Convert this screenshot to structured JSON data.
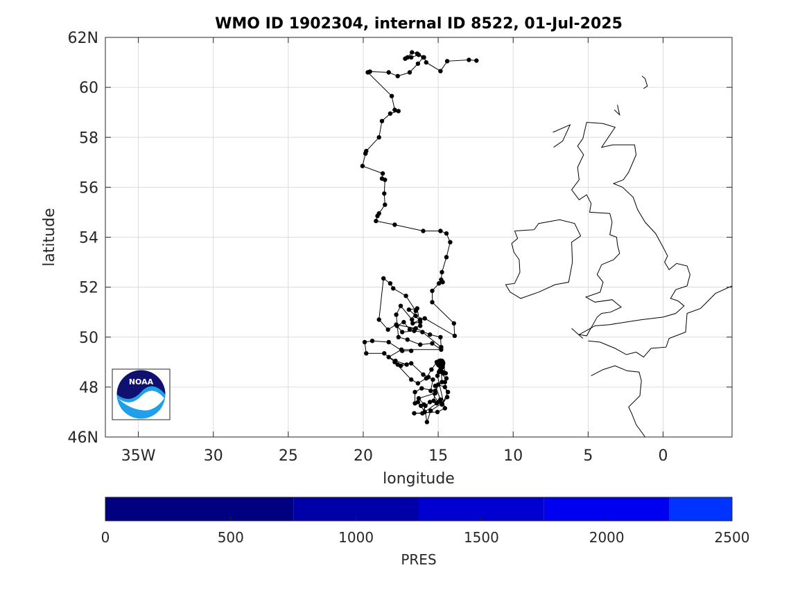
{
  "chart_data": {
    "type": "scatter",
    "title": "WMO ID 1902304, internal ID 8522, 01-Jul-2025",
    "xlabel": "longitude",
    "ylabel": "latitude",
    "xlim": [
      -37.2,
      4.6
    ],
    "ylim": [
      46,
      62
    ],
    "grid": true,
    "x_ticks": [
      {
        "value": -35,
        "label": "35W"
      },
      {
        "value": -30,
        "label": "30"
      },
      {
        "value": -25,
        "label": "25"
      },
      {
        "value": -20,
        "label": "20"
      },
      {
        "value": -15,
        "label": "15"
      },
      {
        "value": -10,
        "label": "10"
      },
      {
        "value": -5,
        "label": "5"
      },
      {
        "value": 0,
        "label": "0"
      }
    ],
    "y_ticks": [
      {
        "value": 46,
        "label": "46N"
      },
      {
        "value": 48,
        "label": "48"
      },
      {
        "value": 50,
        "label": "50"
      },
      {
        "value": 52,
        "label": "52"
      },
      {
        "value": 54,
        "label": "54"
      },
      {
        "value": 56,
        "label": "56"
      },
      {
        "value": 58,
        "label": "58"
      },
      {
        "value": 60,
        "label": "60"
      },
      {
        "value": 62,
        "label": "62N"
      }
    ],
    "series": [
      {
        "points": [
          [
            -12.45,
            61.07
          ],
          [
            -12.95,
            61.1
          ],
          [
            -14.4,
            61.05
          ],
          [
            -14.85,
            60.65
          ],
          [
            -15.8,
            61.0
          ],
          [
            -15.95,
            61.2
          ],
          [
            -16.4,
            61.35
          ],
          [
            -16.75,
            61.4
          ],
          [
            -17.05,
            61.2
          ],
          [
            -17.2,
            61.15
          ],
          [
            -16.8,
            61.2
          ],
          [
            -16.3,
            61.3
          ],
          [
            -16.0,
            61.2
          ],
          [
            -16.35,
            60.95
          ],
          [
            -16.9,
            60.6
          ],
          [
            -17.7,
            60.45
          ],
          [
            -18.3,
            60.6
          ],
          [
            -19.55,
            60.63
          ],
          [
            -19.7,
            60.6
          ],
          [
            -18.1,
            59.65
          ],
          [
            -17.9,
            59.1
          ],
          [
            -17.65,
            59.05
          ],
          [
            -18.2,
            58.95
          ],
          [
            -18.75,
            58.65
          ],
          [
            -18.95,
            58.0
          ],
          [
            -19.8,
            57.45
          ],
          [
            -19.85,
            57.35
          ],
          [
            -20.05,
            56.85
          ],
          [
            -18.7,
            56.55
          ],
          [
            -18.75,
            56.35
          ],
          [
            -18.55,
            56.3
          ],
          [
            -18.6,
            55.75
          ],
          [
            -18.55,
            55.3
          ],
          [
            -18.95,
            54.95
          ],
          [
            -19.05,
            54.85
          ],
          [
            -19.15,
            54.65
          ],
          [
            -17.9,
            54.5
          ],
          [
            -16.0,
            54.25
          ],
          [
            -14.85,
            54.25
          ],
          [
            -14.45,
            54.15
          ],
          [
            -14.2,
            53.8
          ],
          [
            -14.45,
            53.2
          ],
          [
            -14.75,
            52.6
          ],
          [
            -14.8,
            52.3
          ],
          [
            -14.7,
            52.2
          ],
          [
            -14.95,
            52.15
          ],
          [
            -15.4,
            51.85
          ],
          [
            -15.4,
            51.4
          ],
          [
            -13.95,
            50.55
          ],
          [
            -13.9,
            50.05
          ],
          [
            -15.9,
            50.75
          ],
          [
            -16.2,
            50.7
          ],
          [
            -16.7,
            50.55
          ],
          [
            -16.2,
            50.6
          ],
          [
            -16.5,
            50.85
          ],
          [
            -16.95,
            51.1
          ],
          [
            -16.4,
            51.15
          ],
          [
            -16.2,
            50.45
          ],
          [
            -16.9,
            50.3
          ],
          [
            -17.3,
            50.6
          ],
          [
            -17.75,
            50.45
          ],
          [
            -17.4,
            50.2
          ],
          [
            -16.6,
            50.25
          ],
          [
            -16.05,
            50.2
          ],
          [
            -14.8,
            49.6
          ],
          [
            -14.85,
            50.0
          ],
          [
            -15.55,
            50.1
          ],
          [
            -16.5,
            50.35
          ],
          [
            -17.8,
            50.5
          ],
          [
            -18.35,
            50.3
          ],
          [
            -18.95,
            50.7
          ],
          [
            -18.65,
            52.35
          ],
          [
            -18.2,
            52.15
          ],
          [
            -18.0,
            51.95
          ],
          [
            -17.15,
            51.65
          ],
          [
            -16.5,
            51.05
          ],
          [
            -16.75,
            50.7
          ],
          [
            -17.5,
            51.25
          ],
          [
            -17.8,
            50.9
          ],
          [
            -17.65,
            50.0
          ],
          [
            -17.05,
            49.9
          ],
          [
            -16.2,
            49.7
          ],
          [
            -15.4,
            49.75
          ],
          [
            -14.8,
            49.5
          ],
          [
            -17.45,
            49.5
          ],
          [
            -18.3,
            49.2
          ],
          [
            -17.85,
            49.05
          ],
          [
            -17.1,
            48.9
          ],
          [
            -17.5,
            48.85
          ],
          [
            -17.7,
            48.9
          ],
          [
            -16.8,
            48.95
          ],
          [
            -16.0,
            48.5
          ],
          [
            -15.65,
            48.4
          ],
          [
            -15.35,
            48.3
          ],
          [
            -15.5,
            47.85
          ],
          [
            -15.0,
            47.4
          ],
          [
            -14.75,
            47.35
          ],
          [
            -15.5,
            47.05
          ],
          [
            -15.75,
            46.6
          ],
          [
            -15.95,
            47.3
          ],
          [
            -16.3,
            47.55
          ],
          [
            -15.2,
            47.75
          ],
          [
            -15.0,
            48.1
          ],
          [
            -14.55,
            48.0
          ],
          [
            -14.35,
            47.8
          ],
          [
            -14.75,
            47.3
          ],
          [
            -14.4,
            47.6
          ],
          [
            -14.55,
            48.2
          ],
          [
            -14.45,
            48.35
          ],
          [
            -14.95,
            48.6
          ],
          [
            -14.85,
            48.7
          ],
          [
            -14.7,
            48.8
          ],
          [
            -14.9,
            49.0
          ],
          [
            -14.75,
            49.05
          ],
          [
            -14.5,
            48.55
          ],
          [
            -14.7,
            48.6
          ],
          [
            -14.9,
            48.65
          ],
          [
            -14.6,
            48.55
          ],
          [
            -14.8,
            48.65
          ],
          [
            -14.75,
            48.2
          ],
          [
            -15.2,
            48.05
          ],
          [
            -14.85,
            47.5
          ],
          [
            -15.1,
            47.35
          ],
          [
            -15.9,
            47.0
          ],
          [
            -16.15,
            47.25
          ],
          [
            -16.35,
            47.4
          ],
          [
            -16.55,
            47.35
          ],
          [
            -16.55,
            47.8
          ],
          [
            -16.1,
            47.95
          ],
          [
            -15.2,
            47.85
          ],
          [
            -15.3,
            47.45
          ],
          [
            -15.55,
            47.4
          ],
          [
            -15.85,
            47.25
          ],
          [
            -16.05,
            46.95
          ],
          [
            -16.6,
            46.95
          ],
          [
            -15.05,
            47.0
          ],
          [
            -14.55,
            47.15
          ],
          [
            -15.05,
            48.45
          ],
          [
            -14.9,
            48.85
          ],
          [
            -15.1,
            49.0
          ],
          [
            -15.45,
            48.7
          ],
          [
            -15.8,
            48.35
          ],
          [
            -16.35,
            48.15
          ],
          [
            -16.8,
            48.3
          ],
          [
            -17.9,
            49.0
          ],
          [
            -18.6,
            49.35
          ],
          [
            -19.8,
            49.35
          ],
          [
            -19.9,
            49.8
          ],
          [
            -19.4,
            49.85
          ],
          [
            -18.3,
            49.8
          ],
          [
            -17.4,
            49.45
          ],
          [
            -16.8,
            49.45
          ]
        ]
      }
    ],
    "colorbar": {
      "label": "PRES",
      "range": [
        0,
        2500
      ],
      "ticks": [
        "0",
        "500",
        "1000",
        "1500",
        "2000",
        "2500"
      ],
      "bands": [
        {
          "from": 0,
          "to": 750,
          "color": "#000080"
        },
        {
          "from": 750,
          "to": 1250,
          "color": "#0000a8"
        },
        {
          "from": 1250,
          "to": 1750,
          "color": "#0000d0"
        },
        {
          "from": 1750,
          "to": 2250,
          "color": "#0000f0"
        },
        {
          "from": 2250,
          "to": 2500,
          "color": "#0033ff"
        }
      ]
    },
    "coastline": [
      [
        [
          -9.9,
          54.25
        ],
        [
          -8.6,
          54.3
        ],
        [
          -8.3,
          54.55
        ],
        [
          -6.9,
          54.7
        ],
        [
          -5.9,
          54.55
        ],
        [
          -5.5,
          54.05
        ],
        [
          -6.1,
          53.8
        ],
        [
          -6.05,
          53.0
        ],
        [
          -6.3,
          52.2
        ],
        [
          -7.2,
          52.1
        ],
        [
          -8.3,
          51.8
        ],
        [
          -9.5,
          51.55
        ],
        [
          -10.2,
          51.8
        ],
        [
          -10.5,
          52.1
        ],
        [
          -9.9,
          52.15
        ],
        [
          -9.55,
          52.6
        ],
        [
          -9.6,
          53.1
        ],
        [
          -9.95,
          53.4
        ],
        [
          -10.1,
          53.75
        ],
        [
          -9.7,
          53.95
        ],
        [
          -9.9,
          54.25
        ]
      ],
      [
        [
          -5.1,
          58.6
        ],
        [
          -5.35,
          57.95
        ],
        [
          -5.7,
          57.65
        ],
        [
          -5.3,
          57.3
        ],
        [
          -5.7,
          56.8
        ],
        [
          -5.6,
          56.3
        ],
        [
          -6.1,
          55.9
        ],
        [
          -5.6,
          55.5
        ],
        [
          -5.1,
          55.7
        ],
        [
          -4.8,
          55.35
        ],
        [
          -4.9,
          55.0
        ],
        [
          -3.55,
          54.95
        ],
        [
          -3.4,
          54.6
        ],
        [
          -3.55,
          54.1
        ],
        [
          -3.1,
          54.0
        ],
        [
          -3.05,
          53.7
        ],
        [
          -2.9,
          53.35
        ],
        [
          -3.3,
          53.1
        ],
        [
          -4.1,
          52.9
        ],
        [
          -4.4,
          52.5
        ],
        [
          -4.0,
          52.2
        ],
        [
          -4.2,
          51.8
        ],
        [
          -5.15,
          51.6
        ],
        [
          -4.55,
          51.4
        ],
        [
          -3.4,
          51.5
        ],
        [
          -2.8,
          51.2
        ],
        [
          -3.5,
          51.0
        ],
        [
          -4.1,
          50.95
        ],
        [
          -4.4,
          50.8
        ],
        [
          -5.1,
          50.05
        ],
        [
          -5.6,
          50.1
        ],
        [
          -5.0,
          50.3
        ],
        [
          -4.55,
          50.45
        ],
        [
          -3.55,
          50.5
        ],
        [
          -2.5,
          50.6
        ],
        [
          -1.4,
          50.7
        ],
        [
          0.0,
          50.8
        ],
        [
          0.85,
          50.95
        ],
        [
          1.4,
          51.25
        ],
        [
          1.0,
          51.45
        ],
        [
          0.5,
          51.55
        ],
        [
          0.85,
          51.9
        ],
        [
          1.6,
          52.05
        ],
        [
          1.8,
          52.5
        ],
        [
          1.6,
          52.85
        ],
        [
          0.9,
          52.95
        ],
        [
          0.4,
          52.7
        ],
        [
          0.1,
          53.0
        ],
        [
          0.3,
          53.25
        ],
        [
          0.0,
          53.6
        ],
        [
          -0.5,
          54.15
        ],
        [
          -1.2,
          54.6
        ],
        [
          -1.7,
          55.1
        ],
        [
          -2.0,
          55.6
        ],
        [
          -2.7,
          56.0
        ],
        [
          -3.3,
          56.15
        ],
        [
          -2.65,
          56.3
        ],
        [
          -2.3,
          56.6
        ],
        [
          -1.8,
          57.3
        ],
        [
          -1.9,
          57.7
        ],
        [
          -3.35,
          57.7
        ],
        [
          -4.1,
          57.6
        ],
        [
          -3.2,
          58.4
        ],
        [
          -4.0,
          58.55
        ],
        [
          -5.1,
          58.6
        ]
      ],
      [
        [
          -5.0,
          49.85
        ],
        [
          -4.2,
          49.8
        ],
        [
          -3.2,
          49.55
        ],
        [
          -2.45,
          49.3
        ],
        [
          -1.8,
          49.4
        ],
        [
          -1.3,
          49.2
        ],
        [
          -0.8,
          49.55
        ],
        [
          0.2,
          49.6
        ],
        [
          0.4,
          49.95
        ],
        [
          1.5,
          50.2
        ],
        [
          1.6,
          50.95
        ],
        [
          2.5,
          51.15
        ],
        [
          3.5,
          51.75
        ],
        [
          4.6,
          52.05
        ]
      ],
      [
        [
          -4.8,
          48.45
        ],
        [
          -4.0,
          48.7
        ],
        [
          -3.2,
          48.85
        ],
        [
          -2.4,
          48.65
        ],
        [
          -1.6,
          48.6
        ],
        [
          -1.45,
          48.25
        ],
        [
          -1.55,
          47.65
        ],
        [
          -2.3,
          47.2
        ],
        [
          -2.1,
          46.95
        ],
        [
          -1.8,
          46.5
        ],
        [
          -1.2,
          46.0
        ]
      ],
      [
        [
          -6.1,
          50.35
        ],
        [
          -5.35,
          49.95
        ]
      ],
      [
        [
          -7.35,
          58.2
        ],
        [
          -6.2,
          58.5
        ],
        [
          -6.7,
          57.85
        ],
        [
          -7.3,
          57.6
        ]
      ],
      [
        [
          -1.4,
          60.45
        ],
        [
          -1.2,
          60.35
        ],
        [
          -1.05,
          60.05
        ],
        [
          -1.3,
          59.95
        ]
      ],
      [
        [
          -3.25,
          59.1
        ],
        [
          -2.9,
          58.9
        ],
        [
          -3.05,
          59.3
        ]
      ]
    ]
  }
}
